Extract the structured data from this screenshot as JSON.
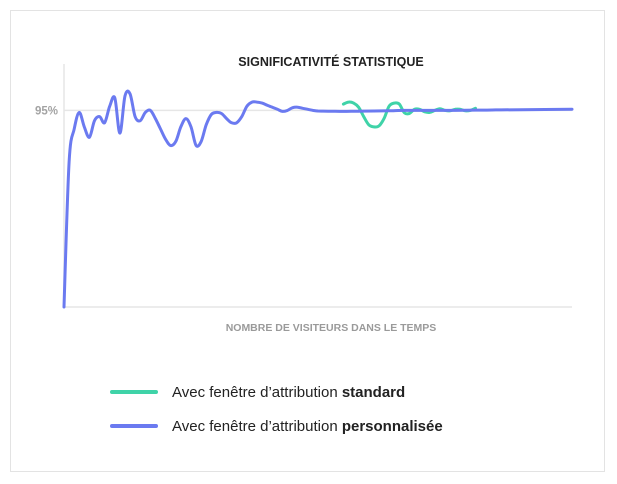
{
  "chart_data": {
    "type": "line",
    "title": "SIGNIFICATIVITÉ STATISTIQUE",
    "xlabel": "NOMBRE DE VISITEURS DANS LE TEMPS",
    "ylabel": "",
    "y_ticks": [
      {
        "value": 95,
        "label": "95%"
      }
    ],
    "ylim": [
      0,
      100
    ],
    "xlim": [
      0,
      100
    ],
    "grid": "horizontal reference line at 95%",
    "legend_position": "bottom-left",
    "series": [
      {
        "name": "Avec fenêtre d'attribution standard",
        "color": "#3fd3a8",
        "points": [
          [
            55,
            98
          ],
          [
            56,
            99
          ],
          [
            57,
            98.5
          ],
          [
            58,
            96.5
          ],
          [
            59,
            92
          ],
          [
            60,
            88
          ],
          [
            61,
            87
          ],
          [
            62,
            87.5
          ],
          [
            63,
            91
          ],
          [
            64,
            97
          ],
          [
            65,
            98.5
          ],
          [
            66,
            98
          ],
          [
            67,
            93.8
          ],
          [
            68,
            93.5
          ],
          [
            69,
            95.5
          ],
          [
            70,
            95.5
          ],
          [
            71,
            94.3
          ],
          [
            72,
            94
          ],
          [
            73,
            95
          ],
          [
            74,
            95.8
          ],
          [
            75,
            95
          ],
          [
            76,
            94.8
          ],
          [
            77,
            95.5
          ],
          [
            78,
            95.5
          ],
          [
            79,
            94.8
          ],
          [
            80,
            95
          ],
          [
            81,
            96
          ]
        ]
      },
      {
        "name": "Avec fenêtre d'attribution personnalisée",
        "color": "#6b7af0",
        "points": [
          [
            0,
            0
          ],
          [
            1,
            70
          ],
          [
            2,
            86
          ],
          [
            3,
            94
          ],
          [
            4,
            87
          ],
          [
            5,
            82
          ],
          [
            6,
            90
          ],
          [
            7,
            92
          ],
          [
            8,
            89
          ],
          [
            9,
            97
          ],
          [
            10,
            101
          ],
          [
            11,
            84
          ],
          [
            12,
            102
          ],
          [
            13,
            103
          ],
          [
            14,
            92
          ],
          [
            15,
            90
          ],
          [
            16,
            94
          ],
          [
            17,
            95
          ],
          [
            18,
            91
          ],
          [
            19,
            86
          ],
          [
            20,
            81
          ],
          [
            21,
            78
          ],
          [
            22,
            80
          ],
          [
            23,
            87
          ],
          [
            24,
            91
          ],
          [
            25,
            87
          ],
          [
            26,
            78
          ],
          [
            27,
            80
          ],
          [
            28,
            88
          ],
          [
            29,
            93
          ],
          [
            30,
            94
          ],
          [
            31,
            93.5
          ],
          [
            32,
            91
          ],
          [
            33,
            89
          ],
          [
            34,
            89
          ],
          [
            35,
            92
          ],
          [
            36,
            97
          ],
          [
            37,
            99
          ],
          [
            38,
            99
          ],
          [
            39,
            98.5
          ],
          [
            40,
            97.5
          ],
          [
            41,
            96.5
          ],
          [
            42,
            95.5
          ],
          [
            43,
            94.5
          ],
          [
            44,
            95
          ],
          [
            45,
            96.3
          ],
          [
            46,
            96.5
          ],
          [
            47,
            96
          ],
          [
            48,
            95.5
          ],
          [
            49,
            95
          ],
          [
            50,
            94.7
          ],
          [
            52,
            94.6
          ],
          [
            55,
            94.5
          ],
          [
            58,
            94.6
          ],
          [
            61,
            94.7
          ],
          [
            64,
            94.8
          ],
          [
            67,
            95
          ],
          [
            70,
            95
          ],
          [
            73,
            95
          ],
          [
            77,
            95
          ],
          [
            81,
            95.1
          ],
          [
            85,
            95.2
          ],
          [
            90,
            95.3
          ],
          [
            100,
            95.5
          ]
        ]
      }
    ]
  },
  "legend": [
    {
      "text": "Avec fenêtre d’attribution ",
      "bold": "standard",
      "color": "#3fd3a8"
    },
    {
      "text": "Avec fenêtre d’attribution ",
      "bold": "personnalisée",
      "color": "#6b7af0"
    }
  ]
}
